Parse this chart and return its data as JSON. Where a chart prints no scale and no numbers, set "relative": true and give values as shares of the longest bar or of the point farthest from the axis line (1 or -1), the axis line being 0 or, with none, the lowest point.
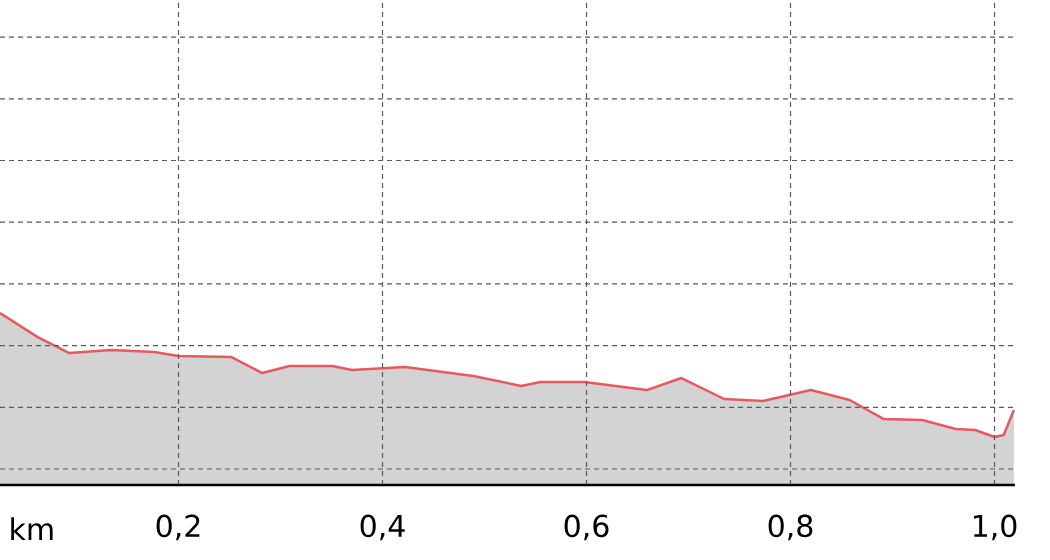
{
  "chart_data": {
    "type": "area",
    "relative": true,
    "xlabel": "km",
    "grid": true,
    "tick_labels": "x",
    "xlim": [
      0.025,
      1.02
    ],
    "xticks": [
      {
        "value": 0.2,
        "label": "0,2"
      },
      {
        "value": 0.4,
        "label": "0,4"
      },
      {
        "value": 0.6,
        "label": "0,6"
      },
      {
        "value": 0.8,
        "label": "0,8"
      },
      {
        "value": 1.0,
        "label": "1,0"
      }
    ],
    "series": [
      {
        "color": "#e8595e",
        "x": [
          0.025,
          0.062,
          0.093,
          0.134,
          0.176,
          0.2,
          0.252,
          0.282,
          0.309,
          0.351,
          0.37,
          0.422,
          0.489,
          0.536,
          0.555,
          0.598,
          0.659,
          0.693,
          0.735,
          0.773,
          0.82,
          0.858,
          0.891,
          0.929,
          0.962,
          0.981,
          1.0,
          1.009,
          1.019
        ],
        "values": [
          1,
          0.86,
          0.767,
          0.785,
          0.773,
          0.75,
          0.744,
          0.651,
          0.692,
          0.692,
          0.669,
          0.686,
          0.634,
          0.576,
          0.599,
          0.599,
          0.552,
          0.622,
          0.5,
          0.488,
          0.552,
          0.494,
          0.384,
          0.378,
          0.326,
          0.32,
          0.279,
          0.291,
          0.436
        ]
      }
    ]
  }
}
